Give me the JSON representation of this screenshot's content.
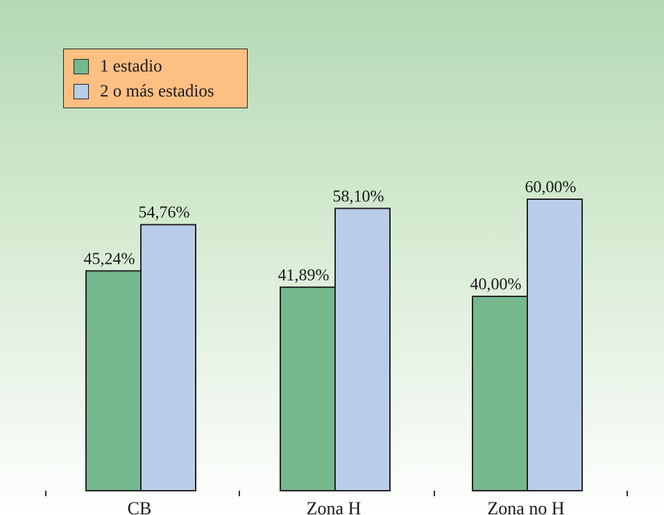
{
  "chart_data": {
    "type": "bar",
    "categories": [
      "CB",
      "Zona H",
      "Zona no H"
    ],
    "series": [
      {
        "name": "1 estadio",
        "values": [
          45.24,
          41.89,
          40.0
        ],
        "labels": [
          "45,24%",
          "41,89%",
          "40,00%"
        ],
        "color": "#74b88e"
      },
      {
        "name": "2 o más estadios",
        "values": [
          54.76,
          58.1,
          60.0
        ],
        "labels": [
          "54,76%",
          "58,10%",
          "60,00%"
        ],
        "color": "#b9cde9"
      }
    ],
    "ylim": [
      0,
      90
    ],
    "legend_position": "top-left",
    "grid": false
  },
  "colors": {
    "legend_background": "#fdbf82",
    "bar_outline": "#222222",
    "background_top": "#b4d9b4",
    "background_bottom": "#ffffff"
  }
}
